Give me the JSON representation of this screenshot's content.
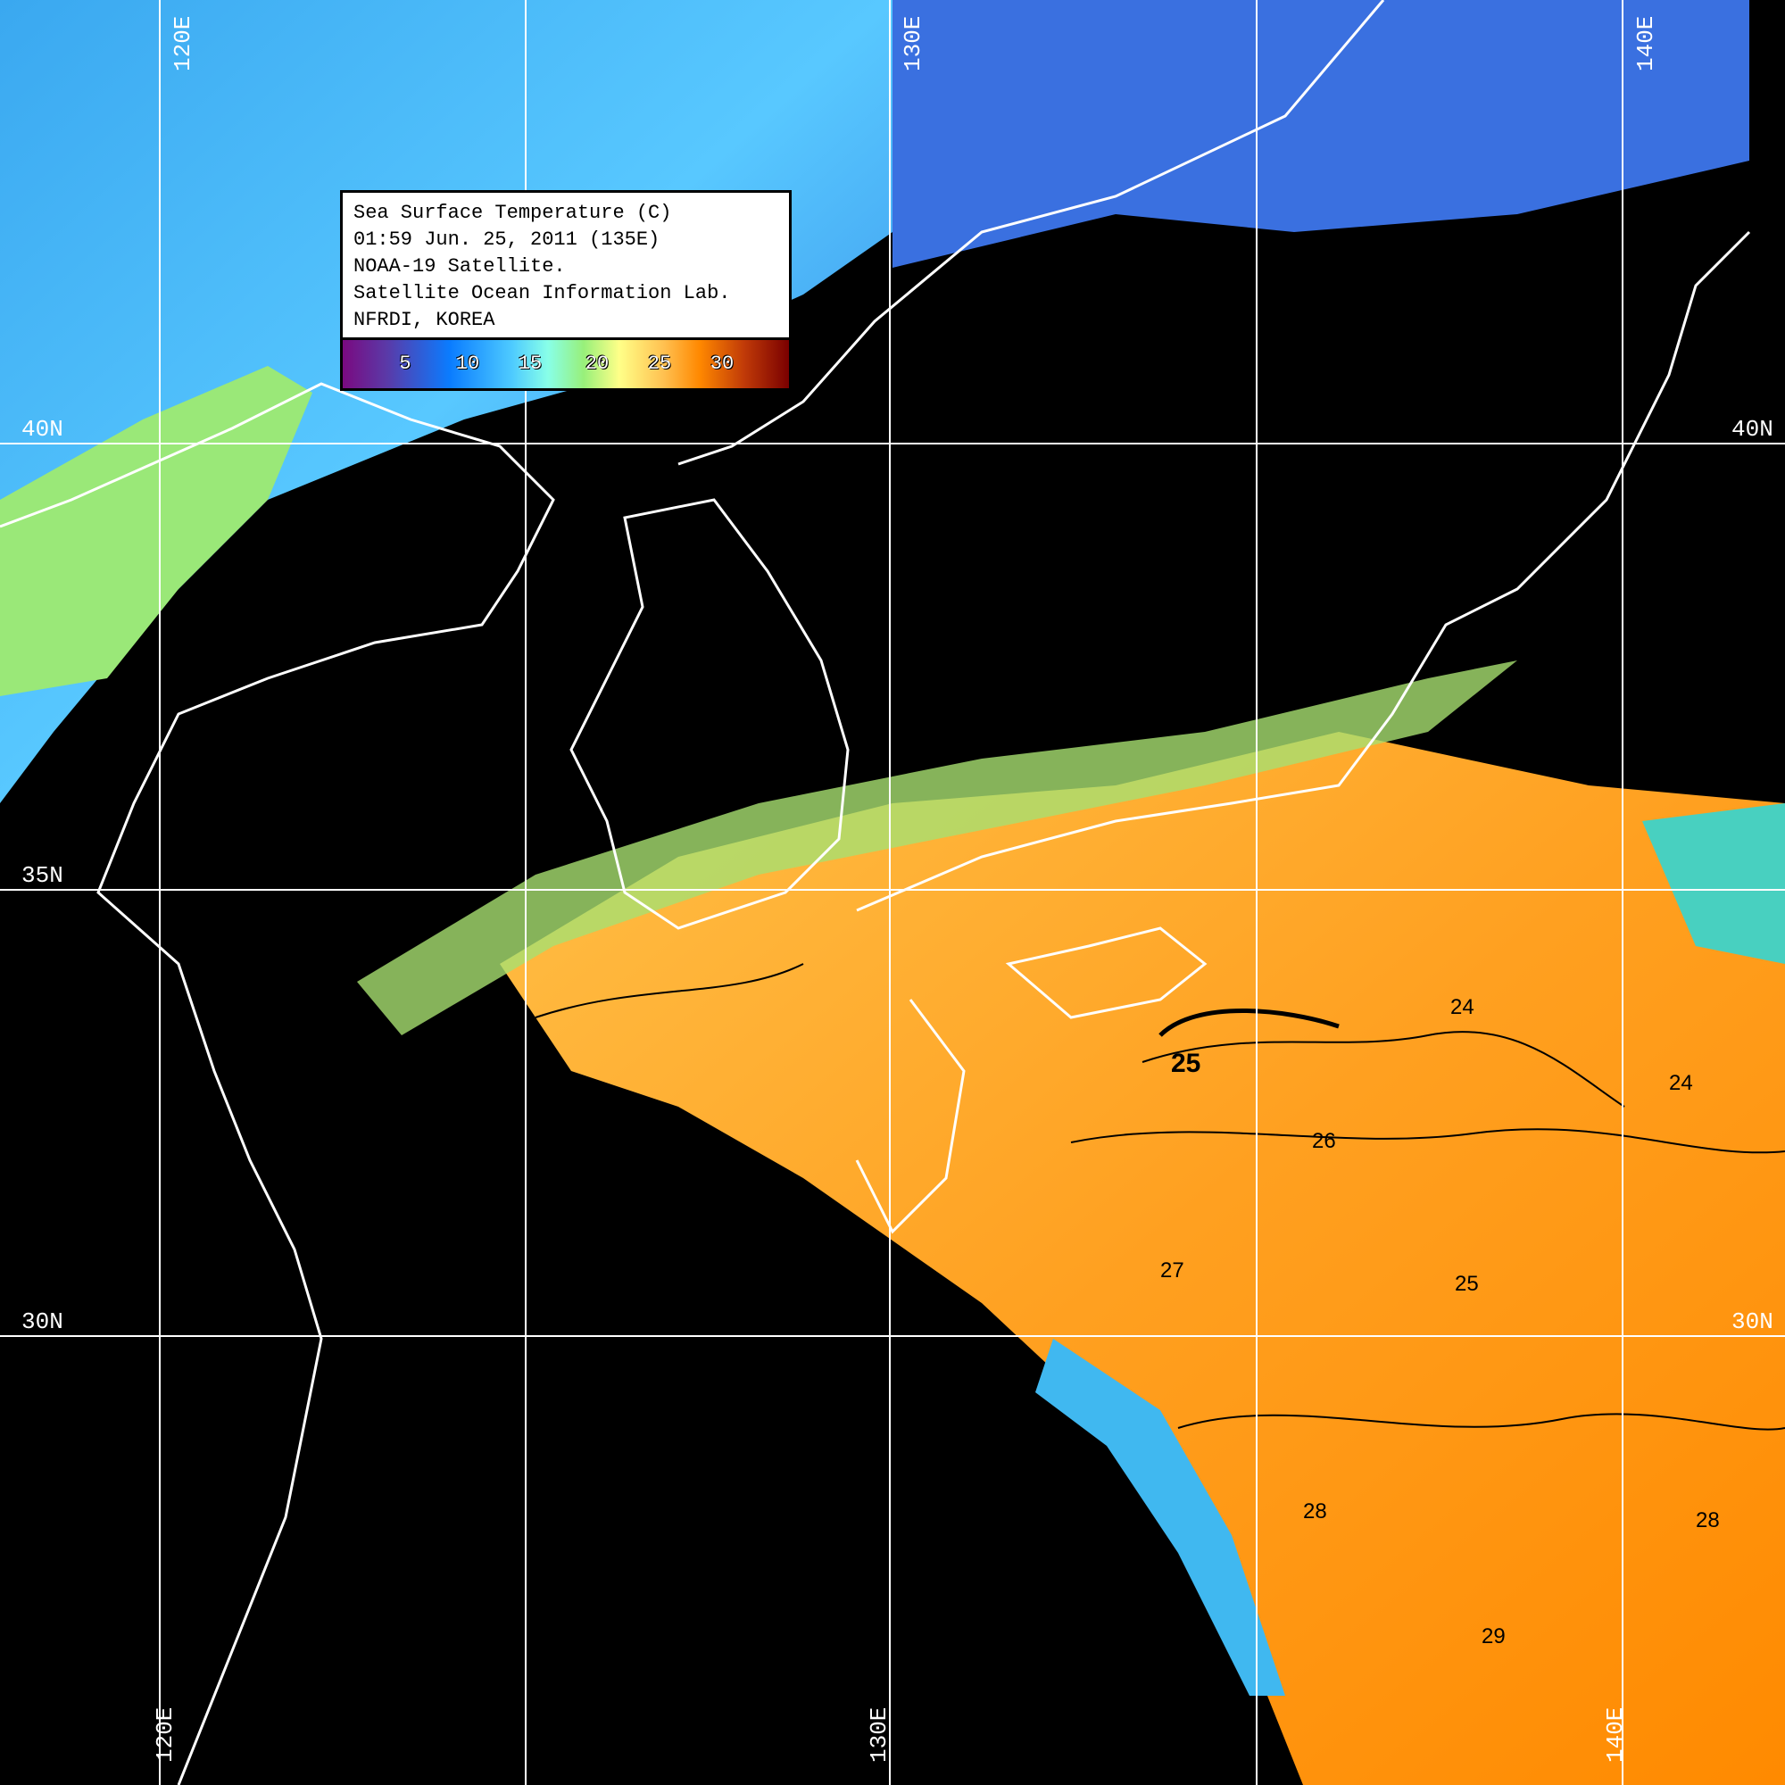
{
  "legend": {
    "lines": [
      "Sea Surface Temperature (C)",
      "01:59 Jun. 25, 2011 (135E)",
      "NOAA-19 Satellite.",
      "Satellite Ocean Information Lab.",
      "NFRDI, KOREA"
    ],
    "colorbar_ticks": [
      "5",
      "10",
      "15",
      "20",
      "25",
      "30"
    ],
    "colorbar_colors": [
      "#7a0a80",
      "#0a7cff",
      "#4ecbff",
      "#98f07a",
      "#ffff88",
      "#ff8800",
      "#7a0000"
    ]
  },
  "grid": {
    "latitudes": [
      "40N",
      "35N",
      "30N"
    ],
    "longitudes": [
      "120E",
      "130E",
      "140E"
    ]
  },
  "contour_labels": [
    "25",
    "26",
    "24",
    "27",
    "28",
    "29",
    "25",
    "24",
    "28"
  ],
  "colors": {
    "land_cloud": "#000000",
    "coast": "#ffffff",
    "grid": "#ffffff"
  }
}
